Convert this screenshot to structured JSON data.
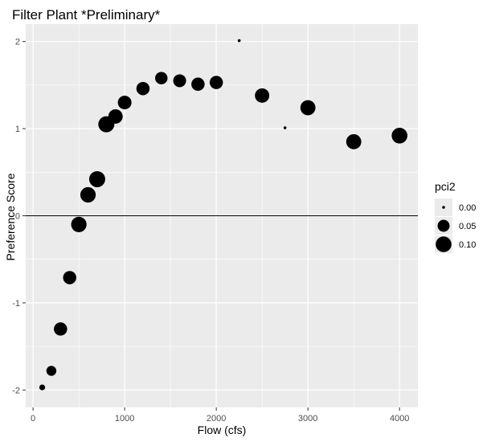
{
  "chart_data": {
    "type": "scatter",
    "title": "Filter Plant  *Preliminary*",
    "xlabel": "Flow (cfs)",
    "ylabel": "Preference Score",
    "xlim": [
      -80,
      4200
    ],
    "ylim": [
      -2.2,
      2.2
    ],
    "x_ticks": [
      0,
      1000,
      2000,
      3000,
      4000
    ],
    "x_tick_labels": [
      "0",
      "1000",
      "2000",
      "3000",
      "4000"
    ],
    "y_ticks": [
      -2,
      -1,
      0,
      1,
      2
    ],
    "y_tick_labels": [
      "-2",
      "-1",
      "0",
      "1",
      "2"
    ],
    "hline": 0,
    "grid": true,
    "background": "#ebebeb",
    "point_color": "#000000",
    "legend": {
      "title": "pci2",
      "position": "right",
      "entries": [
        {
          "label": "0.00",
          "value": 0.0
        },
        {
          "label": "0.05",
          "value": 0.05
        },
        {
          "label": "0.10",
          "value": 0.1
        }
      ]
    },
    "points": [
      {
        "x": 100,
        "y": -1.97,
        "pci2": 0.005
      },
      {
        "x": 200,
        "y": -1.78,
        "pci2": 0.03
      },
      {
        "x": 300,
        "y": -1.3,
        "pci2": 0.065
      },
      {
        "x": 400,
        "y": -0.71,
        "pci2": 0.065
      },
      {
        "x": 500,
        "y": -0.1,
        "pci2": 0.095
      },
      {
        "x": 600,
        "y": 0.24,
        "pci2": 0.095
      },
      {
        "x": 700,
        "y": 0.42,
        "pci2": 0.105
      },
      {
        "x": 800,
        "y": 1.05,
        "pci2": 0.105
      },
      {
        "x": 900,
        "y": 1.14,
        "pci2": 0.08
      },
      {
        "x": 1000,
        "y": 1.3,
        "pci2": 0.07
      },
      {
        "x": 1200,
        "y": 1.46,
        "pci2": 0.065
      },
      {
        "x": 1400,
        "y": 1.58,
        "pci2": 0.055
      },
      {
        "x": 1600,
        "y": 1.55,
        "pci2": 0.06
      },
      {
        "x": 1800,
        "y": 1.51,
        "pci2": 0.065
      },
      {
        "x": 2000,
        "y": 1.53,
        "pci2": 0.065
      },
      {
        "x": 2250,
        "y": 2.01,
        "pci2": 0.0
      },
      {
        "x": 2500,
        "y": 1.38,
        "pci2": 0.08
      },
      {
        "x": 2750,
        "y": 1.01,
        "pci2": 0.0
      },
      {
        "x": 3000,
        "y": 1.24,
        "pci2": 0.09
      },
      {
        "x": 3500,
        "y": 0.85,
        "pci2": 0.09
      },
      {
        "x": 4000,
        "y": 0.92,
        "pci2": 0.1
      }
    ]
  }
}
